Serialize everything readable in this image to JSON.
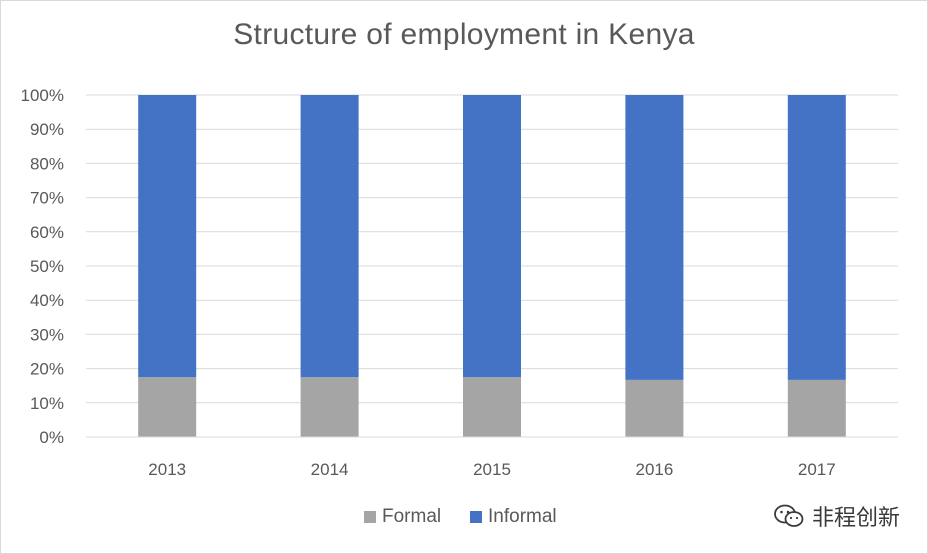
{
  "chart_data": {
    "type": "bar",
    "stacked": true,
    "title": "Structure of employment in Kenya",
    "categories": [
      "2013",
      "2014",
      "2015",
      "2016",
      "2017"
    ],
    "series": [
      {
        "name": "Formal",
        "color": "#a5a5a5",
        "values": [
          17.5,
          17.5,
          17.5,
          16.7,
          16.7
        ]
      },
      {
        "name": "Informal",
        "color": "#4472c4",
        "values": [
          82.5,
          82.5,
          82.5,
          83.3,
          83.3
        ]
      }
    ],
    "ylim": [
      0,
      100
    ],
    "yticks": [
      "0%",
      "10%",
      "20%",
      "30%",
      "40%",
      "50%",
      "60%",
      "70%",
      "80%",
      "90%",
      "100%"
    ],
    "grid": true,
    "legend_position": "bottom"
  },
  "watermark": {
    "text": "非程创新",
    "icon": "wechat-icon"
  }
}
